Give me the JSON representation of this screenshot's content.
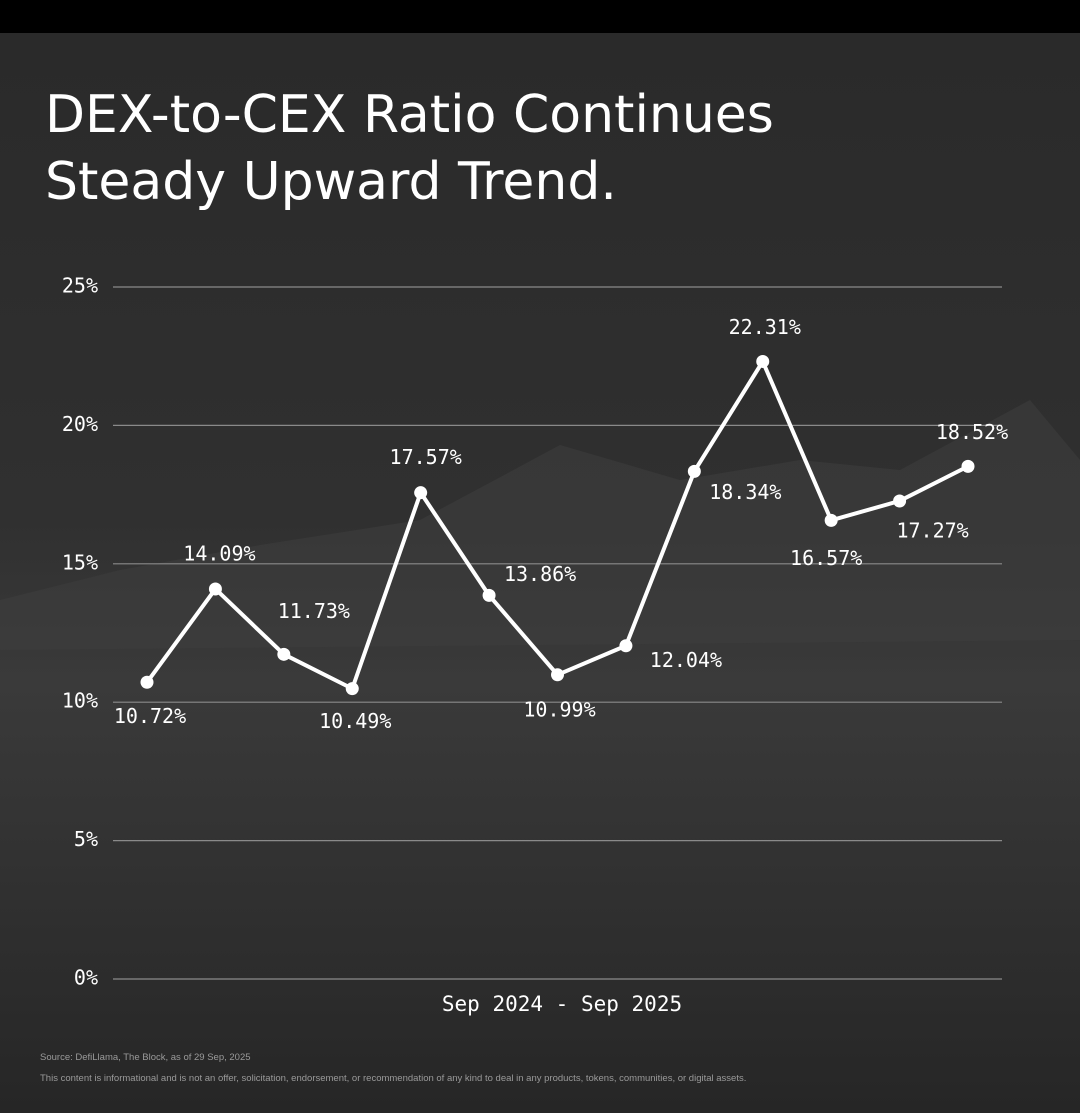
{
  "chart_data": {
    "type": "line",
    "title_lines": [
      "DEX-to-CEX Ratio Continues",
      "Steady Upward Trend."
    ],
    "x_label": "Sep 2024 - Sep 2025",
    "categories": [
      null,
      null,
      null,
      null,
      null,
      null,
      null,
      null,
      null,
      null,
      null,
      null,
      null
    ],
    "values": [
      10.72,
      14.09,
      11.73,
      10.49,
      17.57,
      13.86,
      10.99,
      12.04,
      18.34,
      22.31,
      16.57,
      17.27,
      18.52
    ],
    "value_labels": [
      "10.72%",
      "14.09%",
      "11.73%",
      "10.49%",
      "17.57%",
      "13.86%",
      "10.99%",
      "12.04%",
      "18.34%",
      "22.31%",
      "16.57%",
      "17.27%",
      "18.52%"
    ],
    "color": "#ffffff",
    "ylim": [
      0,
      25
    ],
    "yticks": [
      {
        "value": 0,
        "label": "0%"
      },
      {
        "value": 5,
        "label": "5%"
      },
      {
        "value": 10,
        "label": "10%"
      },
      {
        "value": 15,
        "label": "15%"
      },
      {
        "value": 20,
        "label": "20%"
      },
      {
        "value": 25,
        "label": "25%"
      }
    ],
    "grid": true,
    "source": "Source: DefiLlama, The Block, as of 29 Sep, 2025",
    "disclaimer": "This content is informational and is not an offer, solicitation, endorsement, or recommendation of any kind to deal in any products, tokens, communities, or digital assets."
  }
}
